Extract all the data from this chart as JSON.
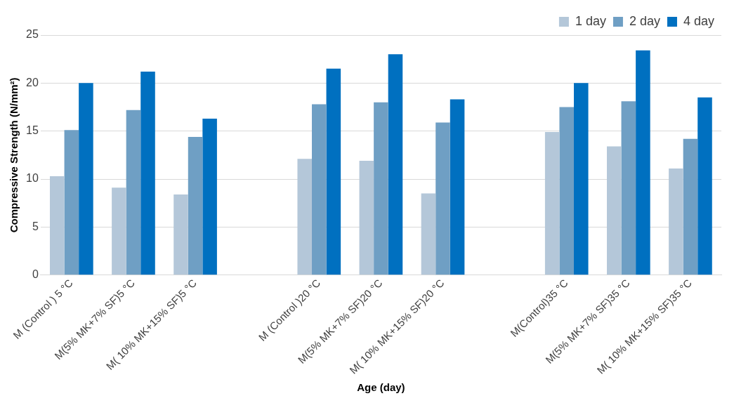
{
  "chart_data": {
    "type": "bar",
    "xlabel": "Age (day)",
    "ylabel": "Compressive Strength (N/mm²)",
    "categories": [
      "M (Control ) 5 °C",
      "M(5% MK+7% SF)5 °C",
      "M( 10% MK+15% SF)5 °C",
      null,
      "M (Control )20 °C",
      "M(5% MK+7% SF)20 °C",
      "M( 10% MK+15% SF)20 °C",
      null,
      "M(Control)35 °C",
      "M(5% MK+7% SF)35 °C",
      "M( 10% MK+15% SF)35 °C"
    ],
    "series": [
      {
        "name": "1 day",
        "color": "#b4c7d9",
        "values": [
          10.3,
          9.1,
          8.4,
          null,
          12.1,
          11.9,
          8.5,
          null,
          14.9,
          13.4,
          11.1
        ]
      },
      {
        "name": "2 day",
        "color": "#6f9fc4",
        "values": [
          15.1,
          17.2,
          14.4,
          null,
          17.8,
          18.0,
          15.9,
          null,
          17.5,
          18.1,
          14.2
        ]
      },
      {
        "name": "4 day",
        "color": "#0070c0",
        "values": [
          20.0,
          21.2,
          16.3,
          null,
          21.5,
          23.0,
          18.3,
          null,
          20.0,
          23.4,
          18.5
        ]
      }
    ],
    "ylim": [
      0,
      25
    ],
    "yticks": [
      0,
      5,
      10,
      15,
      20,
      25
    ],
    "grid": "y",
    "legend": "top right"
  }
}
